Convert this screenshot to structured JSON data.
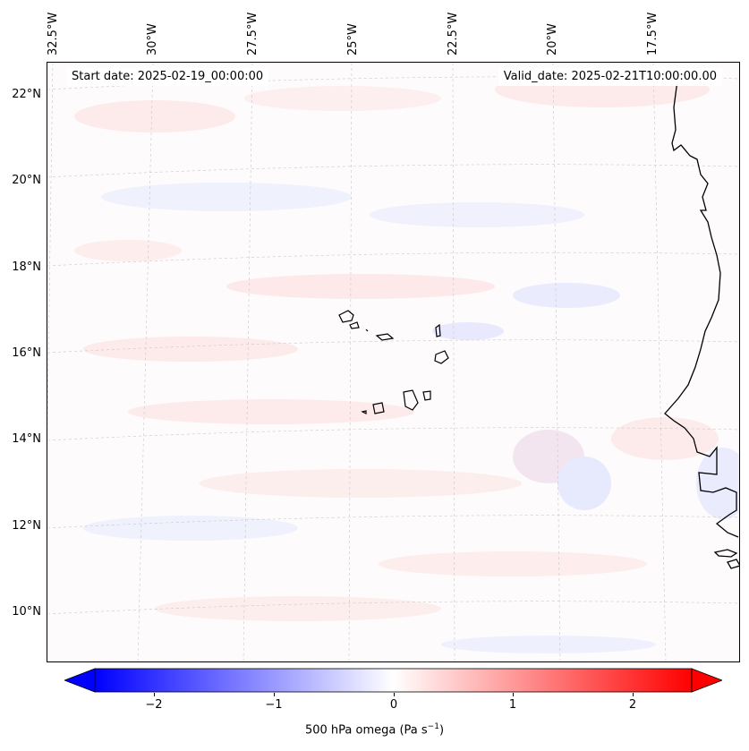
{
  "header": {
    "start_date": "Start date: 2025-02-19_00:00:00",
    "valid_date": "Valid_date: 2025-02-21T10:00:00.00"
  },
  "longitude_labels": [
    "32.5°W",
    "30°W",
    "27.5°W",
    "25°W",
    "22.5°W",
    "20°W",
    "17.5°W"
  ],
  "latitude_labels": [
    "22°N",
    "20°N",
    "18°N",
    "16°N",
    "14°N",
    "12°N",
    "10°N"
  ],
  "colorbar": {
    "title_prefix": "500 hPa omega (Pa s",
    "title_sup": "−1",
    "title_suffix": ")",
    "tick_labels": [
      "−2",
      "−1",
      "0",
      "1",
      "2"
    ],
    "ticks": [
      -2,
      -1,
      0,
      1,
      2
    ],
    "range": [
      -2.6,
      2.6
    ],
    "colormap": "bwr",
    "extend": "both",
    "colors": {
      "low": "#0000ff",
      "mid": "#ffffff",
      "high": "#ff0000"
    }
  },
  "map": {
    "extent_lon": [
      -32.5,
      -15.5
    ],
    "extent_lat": [
      9,
      22.7
    ],
    "coastline_color": "#000000",
    "gridlines": true,
    "variable": "500 hPa omega"
  }
}
